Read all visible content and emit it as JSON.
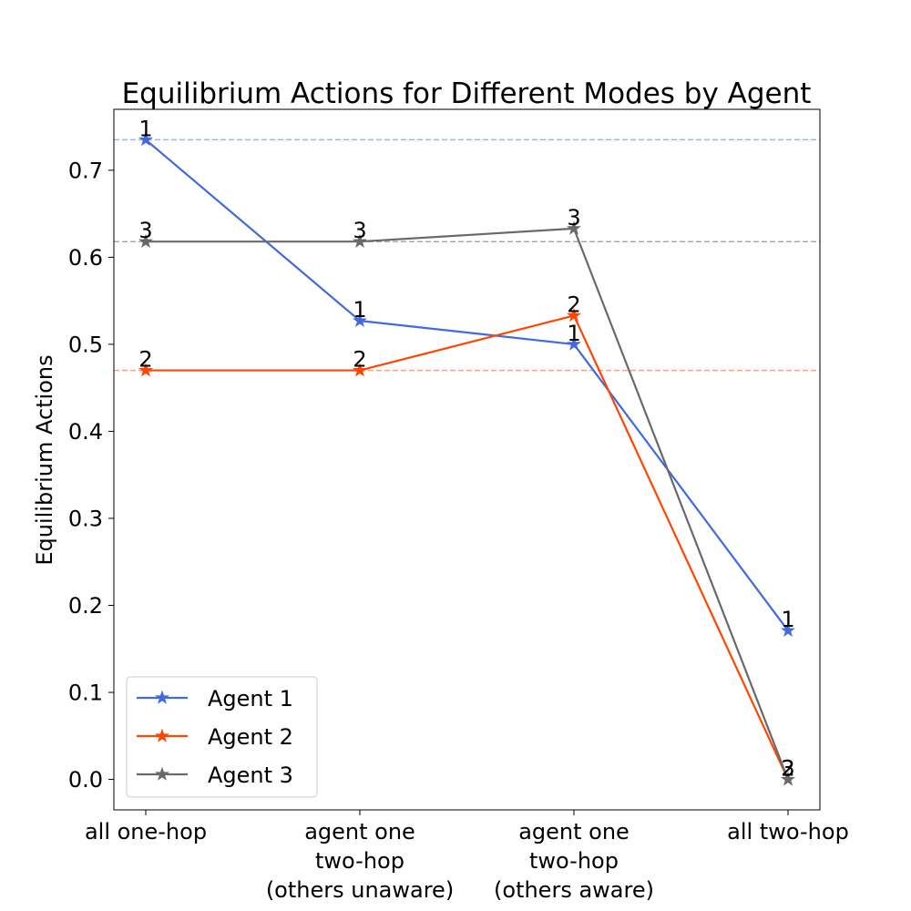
{
  "chart_data": {
    "type": "line",
    "title": "Equilibrium Actions for Different Modes by Agent",
    "xlabel": "",
    "ylabel": "Equilibrium Actions",
    "categories": [
      [
        "all one-hop"
      ],
      [
        "agent one",
        "two-hop",
        "(others unaware)"
      ],
      [
        "agent one",
        "two-hop",
        "(others aware)"
      ],
      [
        "all two-hop"
      ]
    ],
    "ylim": [
      -0.035,
      0.77
    ],
    "yticks": [
      "0.0",
      "0.1",
      "0.2",
      "0.3",
      "0.4",
      "0.5",
      "0.6",
      "0.7"
    ],
    "grid": false,
    "legend": "lower-left",
    "marker": "star",
    "series": [
      {
        "name": "Agent 1",
        "point_label": "1",
        "color": "#4169e1",
        "ref_color": "#9db2ef",
        "values": [
          0.735,
          0.527,
          0.5,
          0.171
        ],
        "reference": 0.735
      },
      {
        "name": "Agent 2",
        "point_label": "2",
        "color": "#ff4500",
        "ref_color": "#ffa07a",
        "values": [
          0.47,
          0.47,
          0.533,
          0.0
        ],
        "reference": 0.47
      },
      {
        "name": "Agent 3",
        "point_label": "3",
        "color": "#696969",
        "ref_color": "#a9a9a9",
        "values": [
          0.618,
          0.618,
          0.633,
          0.0
        ],
        "reference": 0.618
      }
    ]
  }
}
